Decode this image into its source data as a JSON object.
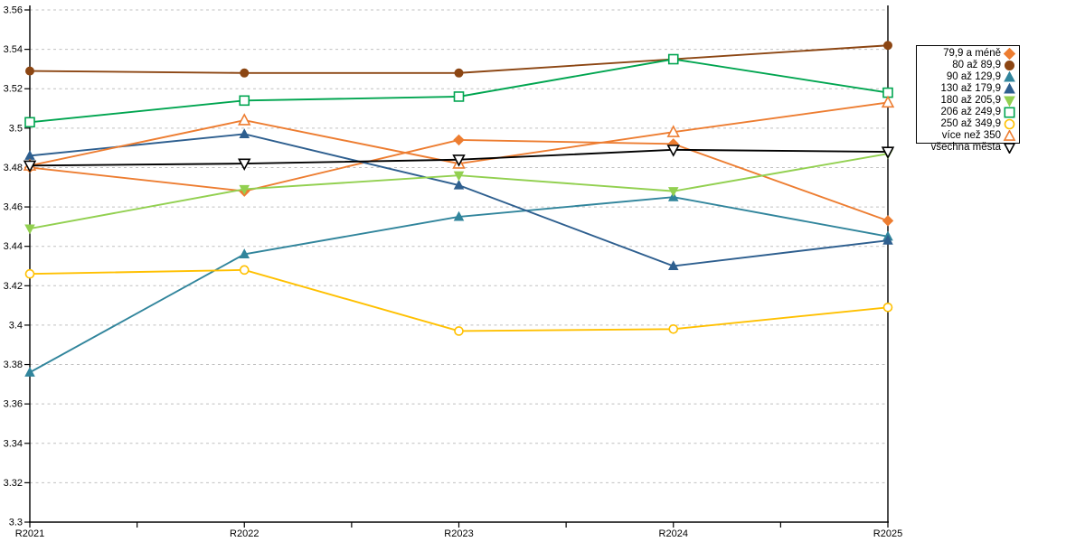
{
  "chart_data": {
    "type": "line",
    "title": "",
    "xlabel": "",
    "ylabel": "",
    "categories": [
      "R2021",
      "R2022",
      "R2023",
      "R2024",
      "R2025"
    ],
    "y_axis": {
      "min": 3.3,
      "max": 3.56,
      "step": 0.02,
      "tick_labels": [
        "3.3",
        "3.32",
        "3.34",
        "3.36",
        "3.38",
        "3.4",
        "3.42",
        "3.44",
        "3.46",
        "3.48",
        "3.5",
        "3.52",
        "3.54",
        "3.56"
      ]
    },
    "grid": true,
    "gridline_color": "#c0c0c0",
    "axis_color": "#000000",
    "legend_position": "right",
    "series": [
      {
        "name": "79,9 a méně",
        "color": "#ED7D31",
        "marker": "diamond",
        "marker_fill": "solid",
        "values": [
          3.48,
          3.468,
          3.494,
          3.492,
          3.453
        ]
      },
      {
        "name": "80 až 89,9",
        "color": "#8C4613",
        "marker": "circle",
        "marker_fill": "solid",
        "values": [
          3.529,
          3.528,
          3.528,
          3.535,
          3.542
        ]
      },
      {
        "name": "90 až 129,9",
        "color": "#31859C",
        "marker": "triangle-up",
        "marker_fill": "solid",
        "values": [
          3.376,
          3.436,
          3.455,
          3.465,
          3.445
        ]
      },
      {
        "name": "130 až 179,9",
        "color": "#2E5F8F",
        "marker": "triangle-up",
        "marker_fill": "solid",
        "values": [
          3.486,
          3.497,
          3.471,
          3.43,
          3.443
        ]
      },
      {
        "name": "180 až 205,9",
        "color": "#92D050",
        "marker": "triangle-down",
        "marker_fill": "solid",
        "values": [
          3.449,
          3.469,
          3.476,
          3.468,
          3.487
        ]
      },
      {
        "name": "206 až 249,9",
        "color": "#00A550",
        "marker": "square",
        "marker_fill": "open",
        "values": [
          3.503,
          3.514,
          3.516,
          3.535,
          3.518
        ]
      },
      {
        "name": "250 až 349,9",
        "color": "#FFC000",
        "marker": "circle",
        "marker_fill": "open",
        "values": [
          3.426,
          3.428,
          3.397,
          3.398,
          3.409
        ]
      },
      {
        "name": "více než 350",
        "color": "#ED7D31",
        "marker": "triangle-up",
        "marker_fill": "open",
        "values": [
          3.481,
          3.504,
          3.482,
          3.498,
          3.513
        ]
      },
      {
        "name": "všechna města",
        "color": "#000000",
        "marker": "triangle-down",
        "marker_fill": "open",
        "values": [
          3.481,
          3.482,
          3.484,
          3.489,
          3.488
        ]
      }
    ]
  }
}
